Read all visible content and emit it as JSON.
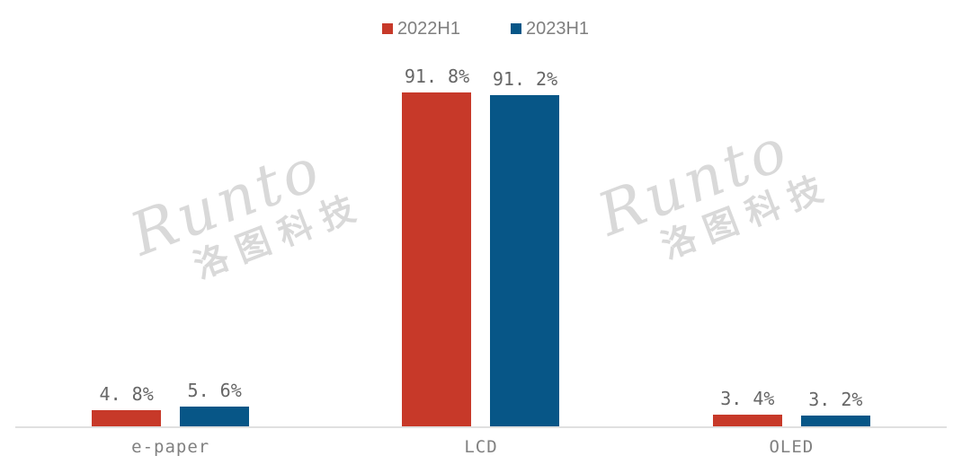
{
  "chart_data": {
    "type": "bar",
    "title": "",
    "categories": [
      "e-paper",
      "LCD",
      "OLED"
    ],
    "series": [
      {
        "name": "2022H1",
        "color": "#C73929",
        "values": [
          4.8,
          91.8,
          3.4
        ],
        "data_labels": [
          "4.8%",
          "91.8%",
          "3.4%"
        ]
      },
      {
        "name": "2023H1",
        "color": "#075687",
        "values": [
          5.6,
          91.2,
          3.2
        ],
        "data_labels": [
          "5.6%",
          "91.2%",
          "3.2%"
        ]
      }
    ],
    "xlabel": "",
    "ylabel": "",
    "ylim": [
      0,
      100
    ],
    "grid": false,
    "y_axis_visible": false,
    "legend_position": "top-center",
    "data_labels_visible": true
  },
  "watermark": {
    "brand": "Runto",
    "cjk_name": "洛图科技"
  },
  "colors": {
    "background": "#FFFFFF",
    "data_label_text": "#666666",
    "category_label_text": "#808080",
    "legend_text": "#7F7F7F",
    "axis_baseline": "#E0E0E0",
    "watermark": "#D9D9D9"
  }
}
